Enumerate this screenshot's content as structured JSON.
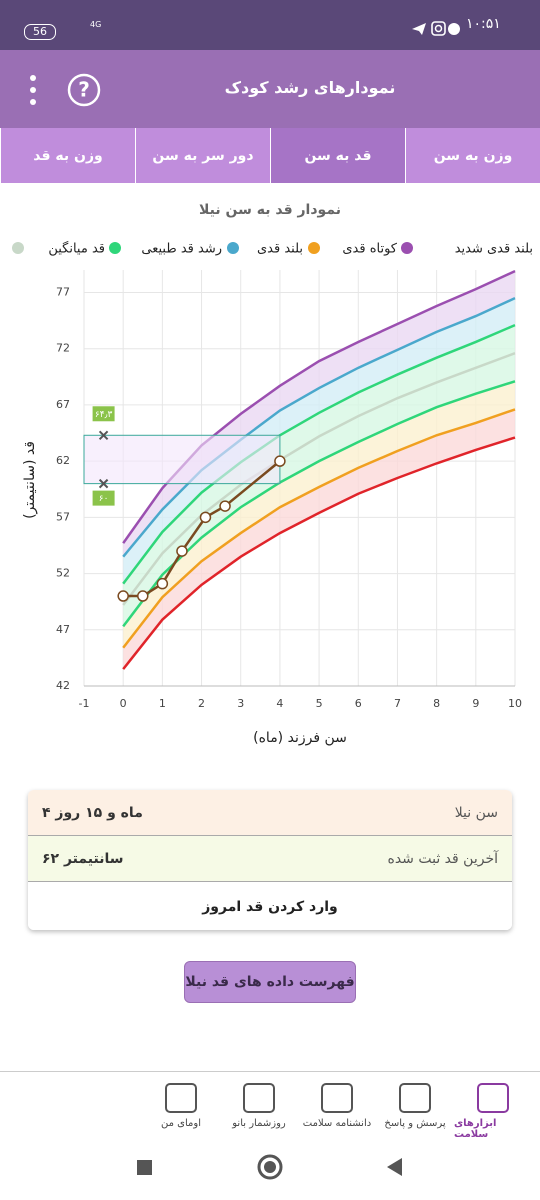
{
  "status_bar": {
    "time": "۱۰:۵۱",
    "battery": "56",
    "network": "4G"
  },
  "header": {
    "title": "نمودارهای رشد کودک"
  },
  "tabs": [
    {
      "label": "وزن به سن",
      "active": false
    },
    {
      "label": "قد به سن",
      "active": true
    },
    {
      "label": "دور سر به سن",
      "active": false
    },
    {
      "label": "وزن به قد",
      "active": false
    }
  ],
  "chart_data": {
    "type": "line",
    "title": "نمودار قد به سن نیلا",
    "x_label": "سن فرزند (ماه)",
    "y_label": "قد (سانتیمتر)",
    "x": [
      0,
      1,
      2,
      3,
      4,
      5,
      6,
      7,
      8,
      9,
      10
    ],
    "xlim": [
      -1,
      10
    ],
    "xticks": [
      -1,
      0,
      1,
      2,
      3,
      4,
      5,
      6,
      7,
      8,
      9,
      10
    ],
    "ylim": [
      42,
      79
    ],
    "yticks": [
      42,
      47,
      52,
      57,
      62,
      67,
      72,
      77
    ],
    "grid": true,
    "series": [
      {
        "name": "بلند قدی شدید",
        "color": "#9b4fb0",
        "band_color": "#ead8f2",
        "values": [
          54.7,
          59.6,
          63.4,
          66.2,
          68.7,
          70.9,
          72.6,
          74.2,
          75.8,
          77.3,
          78.9
        ]
      },
      {
        "name": "بلند قدی",
        "color": "#4aa8cc",
        "band_color": "#d3eef6",
        "values": [
          53.5,
          57.7,
          61.2,
          63.9,
          66.5,
          68.5,
          70.3,
          71.9,
          73.5,
          74.9,
          76.5
        ]
      },
      {
        "name": "رشد قد طبیعی",
        "color": "#2fd67a",
        "band_color": "#d7f8e4",
        "values": [
          51.1,
          55.7,
          59.2,
          61.9,
          64.3,
          66.3,
          68.1,
          69.7,
          71.2,
          72.6,
          74.1
        ]
      },
      {
        "name": "قد میانگین",
        "color": "#c8d8c8",
        "band_color": "#d7f8e4",
        "values": [
          49.2,
          53.8,
          57.2,
          59.9,
          62.1,
          64.2,
          66.0,
          67.6,
          69.0,
          70.3,
          71.6
        ]
      },
      {
        "color": "#2fd67a",
        "band_color": "#fbf0cf",
        "values": [
          47.3,
          51.9,
          55.2,
          57.9,
          60.1,
          62.0,
          63.7,
          65.3,
          66.8,
          68.0,
          69.1
        ]
      },
      {
        "name": "کوتاه قدی",
        "color": "#f0a020",
        "band_color": "#fbdada",
        "values": [
          45.4,
          49.9,
          53.1,
          55.6,
          57.9,
          59.7,
          61.4,
          62.9,
          64.3,
          65.4,
          66.6
        ]
      },
      {
        "color": "#e0242a",
        "values": [
          43.5,
          47.9,
          51.0,
          53.5,
          55.6,
          57.4,
          59.1,
          60.5,
          61.8,
          63.0,
          64.1
        ]
      }
    ],
    "child": {
      "color": "#7a4a20",
      "x": [
        0,
        0.5,
        1,
        1.5,
        2.1,
        2.6,
        4
      ],
      "values": [
        50.0,
        50.0,
        51.1,
        54.0,
        57.0,
        58.0,
        62.0
      ]
    },
    "target": {
      "x": [
        -1,
        4
      ],
      "marker_x": -0.5,
      "low": {
        "value": 60,
        "label": "۶۰"
      },
      "high": {
        "value": 64.3,
        "label": "۶۴٫۳"
      }
    }
  },
  "info": {
    "rows": [
      {
        "label": "سن نیلا",
        "value": "۴ ماه و ۱۵ روز"
      },
      {
        "label": "آخرین قد ثبت شده",
        "value": "۶۲ سانتیمتر"
      }
    ],
    "action": "وارد کردن قد امروز"
  },
  "list_button": "فهرست داده های قد نیلا",
  "bottom_nav": [
    {
      "label": "ابزارهای سلامت",
      "active": true
    },
    {
      "label": "پرسش و پاسخ",
      "active": false
    },
    {
      "label": "دانشنامه سلامت",
      "active": false
    },
    {
      "label": "روزشمار بانو",
      "active": false
    },
    {
      "label": "اومای من",
      "active": false
    }
  ]
}
